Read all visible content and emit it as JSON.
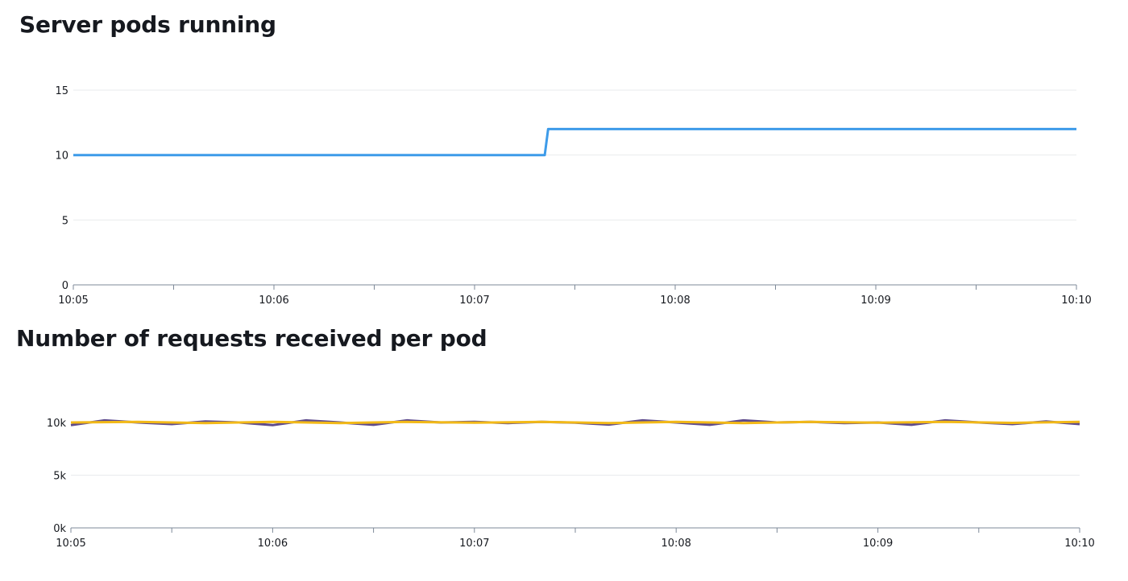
{
  "colors": {
    "pods_line": "#3d9be9",
    "req_series_a": "#5f4b8b",
    "req_series_b": "#f2b918"
  },
  "chart_data": [
    {
      "type": "line",
      "title": "Server pods running",
      "x_ticks": [
        "10:05",
        "10:06",
        "10:07",
        "10:08",
        "10:09",
        "10:10"
      ],
      "x_minor_ticks_between": true,
      "y_ticks": [
        "0",
        "5",
        "10",
        "15"
      ],
      "ylim": [
        0,
        15
      ],
      "xlim": [
        "10:05",
        "10:10"
      ],
      "grid": "horizontal",
      "series": [
        {
          "color": "#3d9be9",
          "points": [
            {
              "x": "10:05:00",
              "y": 10
            },
            {
              "x": "10:07:21",
              "y": 10
            },
            {
              "x": "10:07:22",
              "y": 12
            },
            {
              "x": "10:10:00",
              "y": 12
            }
          ]
        }
      ]
    },
    {
      "type": "line",
      "title": "Number of requests received per pod",
      "x_ticks": [
        "10:05",
        "10:06",
        "10:07",
        "10:08",
        "10:09",
        "10:10"
      ],
      "x_minor_ticks_between": true,
      "y_ticks": [
        "0k",
        "5k",
        "10k"
      ],
      "ylim": [
        0,
        10000
      ],
      "xlim": [
        "10:05",
        "10:10"
      ],
      "grid": "horizontal",
      "series": [
        {
          "color": "#5f4b8b",
          "points": [
            {
              "x": "10:05:00",
              "y": 9750
            },
            {
              "x": "10:05:10",
              "y": 10200
            },
            {
              "x": "10:05:20",
              "y": 10000
            },
            {
              "x": "10:05:30",
              "y": 9850
            },
            {
              "x": "10:05:40",
              "y": 10100
            },
            {
              "x": "10:05:50",
              "y": 10000
            },
            {
              "x": "10:06:00",
              "y": 9750
            },
            {
              "x": "10:06:10",
              "y": 10200
            },
            {
              "x": "10:06:20",
              "y": 10000
            },
            {
              "x": "10:06:30",
              "y": 9780
            },
            {
              "x": "10:06:40",
              "y": 10200
            },
            {
              "x": "10:06:50",
              "y": 10000
            },
            {
              "x": "10:07:00",
              "y": 10050
            },
            {
              "x": "10:07:10",
              "y": 9950
            },
            {
              "x": "10:07:20",
              "y": 10050
            },
            {
              "x": "10:07:30",
              "y": 9980
            },
            {
              "x": "10:07:40",
              "y": 9800
            },
            {
              "x": "10:07:50",
              "y": 10200
            },
            {
              "x": "10:08:00",
              "y": 10000
            },
            {
              "x": "10:08:10",
              "y": 9780
            },
            {
              "x": "10:08:20",
              "y": 10200
            },
            {
              "x": "10:08:30",
              "y": 10000
            },
            {
              "x": "10:08:40",
              "y": 10050
            },
            {
              "x": "10:08:50",
              "y": 9950
            },
            {
              "x": "10:09:00",
              "y": 10000
            },
            {
              "x": "10:09:10",
              "y": 9780
            },
            {
              "x": "10:09:20",
              "y": 10200
            },
            {
              "x": "10:09:30",
              "y": 10000
            },
            {
              "x": "10:09:40",
              "y": 9850
            },
            {
              "x": "10:09:50",
              "y": 10100
            },
            {
              "x": "10:10:00",
              "y": 9850
            }
          ]
        },
        {
          "color": "#f2b918",
          "points": [
            {
              "x": "10:05:00",
              "y": 10000
            },
            {
              "x": "10:05:20",
              "y": 10050
            },
            {
              "x": "10:05:40",
              "y": 9950
            },
            {
              "x": "10:06:00",
              "y": 10050
            },
            {
              "x": "10:06:20",
              "y": 9950
            },
            {
              "x": "10:06:40",
              "y": 10050
            },
            {
              "x": "10:07:00",
              "y": 9980
            },
            {
              "x": "10:07:20",
              "y": 10050
            },
            {
              "x": "10:07:40",
              "y": 9950
            },
            {
              "x": "10:08:00",
              "y": 10050
            },
            {
              "x": "10:08:20",
              "y": 9950
            },
            {
              "x": "10:08:40",
              "y": 10050
            },
            {
              "x": "10:09:00",
              "y": 9980
            },
            {
              "x": "10:09:20",
              "y": 10050
            },
            {
              "x": "10:09:40",
              "y": 9960
            },
            {
              "x": "10:10:00",
              "y": 10050
            }
          ]
        }
      ]
    }
  ]
}
